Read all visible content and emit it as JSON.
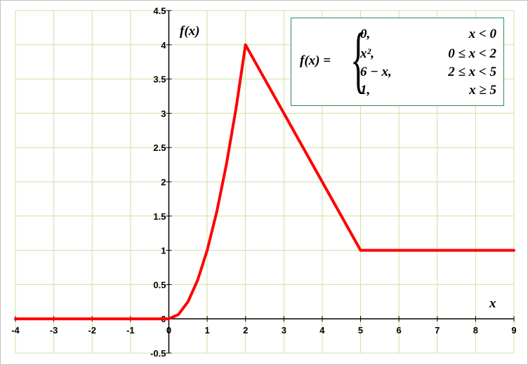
{
  "chart_data": {
    "type": "line",
    "xlabel": "x",
    "ylabel": "f(x)",
    "xlim": [
      -4,
      9
    ],
    "ylim": [
      -0.5,
      4.5
    ],
    "x_ticks": [
      "-4",
      "-3",
      "-2",
      "-1",
      "0",
      "1",
      "2",
      "3",
      "4",
      "5",
      "6",
      "7",
      "8",
      "9"
    ],
    "y_ticks": [
      "-0.5",
      "0",
      "0.5",
      "1",
      "1.5",
      "2",
      "2.5",
      "3",
      "3.5",
      "4",
      "4.5"
    ],
    "grid": true,
    "series": [
      {
        "color": "#ff0000",
        "points": [
          [
            -4,
            0
          ],
          [
            0,
            0
          ],
          [
            0.25,
            0.0625
          ],
          [
            0.5,
            0.25
          ],
          [
            0.75,
            0.5625
          ],
          [
            1,
            1
          ],
          [
            1.25,
            1.5625
          ],
          [
            1.5,
            2.25
          ],
          [
            1.75,
            3.0625
          ],
          [
            2,
            4
          ],
          [
            3,
            3
          ],
          [
            4,
            2
          ],
          [
            5,
            1
          ],
          [
            6,
            1
          ],
          [
            7,
            1
          ],
          [
            8,
            1
          ],
          [
            9,
            1
          ]
        ]
      }
    ],
    "annotation": {
      "lhs": "f(x) =",
      "cases": [
        {
          "expr": "0,",
          "cond": "x < 0"
        },
        {
          "expr": "x², ",
          "cond": "0 ≤ x < 2"
        },
        {
          "expr": "6 − x,",
          "cond": "2 ≤ x < 5"
        },
        {
          "expr": "1,",
          "cond": "x ≥ 5"
        }
      ]
    }
  },
  "colors": {
    "grid": "#c8e6a0",
    "axis": "#000000",
    "line": "#ff0000",
    "legend_border": "#2e8b57"
  }
}
